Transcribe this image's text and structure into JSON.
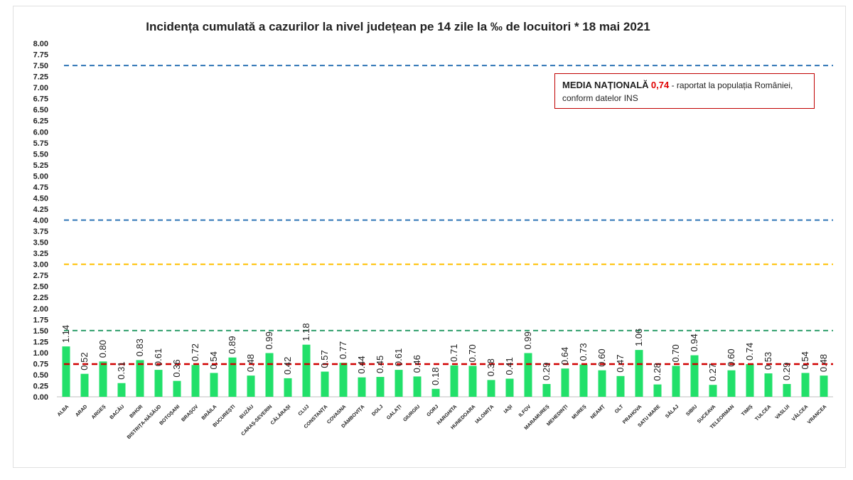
{
  "chart_data": {
    "type": "bar",
    "title": "Incidența cumulată a cazurilor la nivel județean pe 14 zile la ‰ de locuitori *  18 mai 2021",
    "xlabel": "",
    "ylabel": "",
    "ylim": [
      0,
      8
    ],
    "yticks": [
      "0.00",
      "0.25",
      "0.50",
      "0.75",
      "1.00",
      "1.25",
      "1.50",
      "1.75",
      "2.00",
      "2.25",
      "2.50",
      "2.75",
      "3.00",
      "3.25",
      "3.50",
      "3.75",
      "4.00",
      "4.25",
      "4.50",
      "4.75",
      "5.00",
      "5.25",
      "5.50",
      "5.75",
      "6.00",
      "6.25",
      "6.50",
      "6.75",
      "7.00",
      "7.25",
      "7.50",
      "7.75",
      "8.00"
    ],
    "categories": [
      "ALBA",
      "ARAD",
      "ARGEȘ",
      "BACĂU",
      "BIHOR",
      "BISTRIȚA-NĂSĂUD",
      "BOTOȘANI",
      "BRAȘOV",
      "BRĂILA",
      "BUCUREȘTI",
      "BUZĂU",
      "CARAȘ-SEVERIN",
      "CĂLĂRAȘI",
      "CLUJ",
      "CONSTANȚA",
      "COVASNA",
      "DÂMBOVIȚA",
      "DOLJ",
      "GALAȚI",
      "GIURGIU",
      "GORJ",
      "HARGHITA",
      "HUNEDOARA",
      "IALOMIȚA",
      "IAȘI",
      "ILFOV",
      "MARAMUREȘ",
      "MEHEDINȚI",
      "MUREȘ",
      "NEAMȚ",
      "OLT",
      "PRAHOVA",
      "SATU MARE",
      "SĂLAJ",
      "SIBIU",
      "SUCEAVA",
      "TELEORMAN",
      "TIMIȘ",
      "TULCEA",
      "VASLUI",
      "VÂLCEA",
      "VRANCEA"
    ],
    "values": [
      1.14,
      0.52,
      0.8,
      0.31,
      0.83,
      0.61,
      0.36,
      0.72,
      0.54,
      0.89,
      0.48,
      0.99,
      0.42,
      1.18,
      0.57,
      0.77,
      0.44,
      0.45,
      0.61,
      0.46,
      0.18,
      0.71,
      0.7,
      0.38,
      0.41,
      0.99,
      0.29,
      0.64,
      0.73,
      0.6,
      0.47,
      1.06,
      0.28,
      0.7,
      0.94,
      0.27,
      0.6,
      0.74,
      0.53,
      0.29,
      0.54,
      0.48
    ],
    "value_labels": [
      "1.14",
      "0.52",
      "0.80",
      "0.31",
      "0.83",
      "0.61",
      "0.36",
      "0.72",
      "0.54",
      "0.89",
      "0.48",
      "0.99",
      "0.42",
      "1.18",
      "0.57",
      "0.77",
      "0.44",
      "0.45",
      "0.61",
      "0.46",
      "0.18",
      "0.71",
      "0.70",
      "0.38",
      "0.41",
      "0.99",
      "0.29",
      "0.64",
      "0.73",
      "0.60",
      "0.47",
      "1.06",
      "0.28",
      "0.70",
      "0.94",
      "0.27",
      "0.60",
      "0.74",
      "0.53",
      "0.29",
      "0.54",
      "0.48"
    ],
    "reference_lines": [
      {
        "value": 7.5,
        "color": "#2e75b6"
      },
      {
        "value": 4.0,
        "color": "#2e75b6"
      },
      {
        "value": 3.0,
        "color": "#ffc000"
      },
      {
        "value": 1.5,
        "color": "#2e9e6b"
      },
      {
        "value": 0.74,
        "color": "#d00000"
      }
    ],
    "bar_color": "#22e06a",
    "grid": false
  },
  "note": {
    "bold_text": "MEDIA NAȚIONALĂ",
    "value": "0,74",
    "rest": "- raportat la populația României,",
    "line2": "conform datelor INS"
  }
}
